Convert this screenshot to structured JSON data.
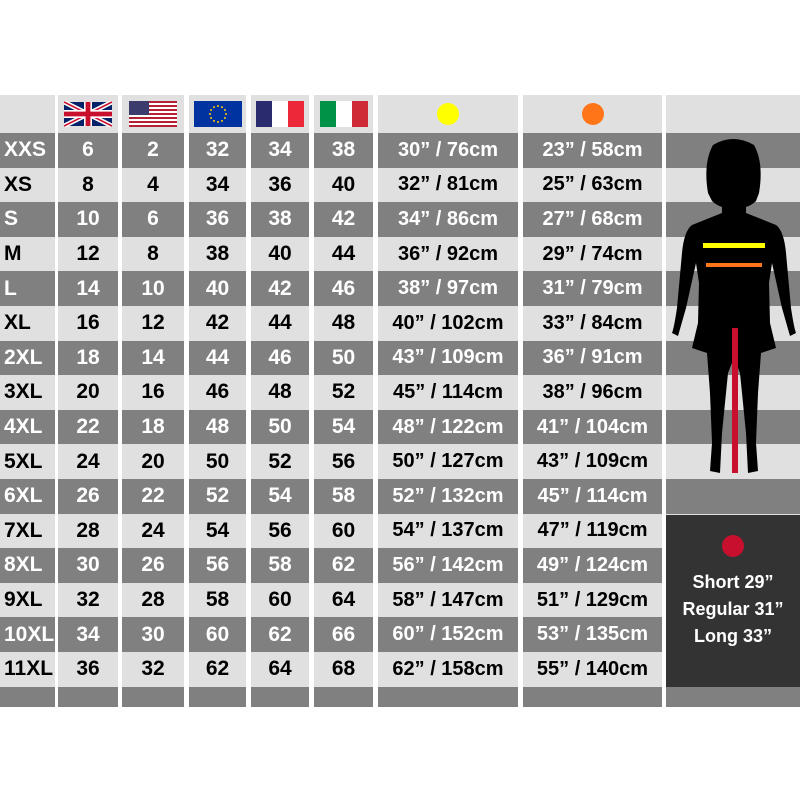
{
  "colors": {
    "bust": "#ffff00",
    "waist": "#ff7518",
    "inseam": "#c8102e",
    "dark_row": "#808080",
    "light_row": "#e0e0e0"
  },
  "header": {
    "flags": [
      "uk-flag",
      "us-flag",
      "eu-flag",
      "france-flag",
      "italy-flag"
    ],
    "bust_icon": "yellow-dot",
    "waist_icon": "orange-dot"
  },
  "rows": [
    [
      "XXS",
      "6",
      "2",
      "32",
      "34",
      "38",
      "30” / 76cm",
      "23” / 58cm"
    ],
    [
      "XS",
      "8",
      "4",
      "34",
      "36",
      "40",
      "32” / 81cm",
      "25” / 63cm"
    ],
    [
      "S",
      "10",
      "6",
      "36",
      "38",
      "42",
      "34” / 86cm",
      "27” / 68cm"
    ],
    [
      "M",
      "12",
      "8",
      "38",
      "40",
      "44",
      "36” / 92cm",
      "29” / 74cm"
    ],
    [
      "L",
      "14",
      "10",
      "40",
      "42",
      "46",
      "38” / 97cm",
      "31” / 79cm"
    ],
    [
      "XL",
      "16",
      "12",
      "42",
      "44",
      "48",
      "40” / 102cm",
      "33” / 84cm"
    ],
    [
      "2XL",
      "18",
      "14",
      "44",
      "46",
      "50",
      "43” / 109cm",
      "36” / 91cm"
    ],
    [
      "3XL",
      "20",
      "16",
      "46",
      "48",
      "52",
      "45” / 114cm",
      "38” / 96cm"
    ],
    [
      "4XL",
      "22",
      "18",
      "48",
      "50",
      "54",
      "48” / 122cm",
      "41” / 104cm"
    ],
    [
      "5XL",
      "24",
      "20",
      "50",
      "52",
      "56",
      "50” / 127cm",
      "43” / 109cm"
    ],
    [
      "6XL",
      "26",
      "22",
      "52",
      "54",
      "58",
      "52” / 132cm",
      "45” / 114cm"
    ],
    [
      "7XL",
      "28",
      "24",
      "54",
      "56",
      "60",
      "54” / 137cm",
      "47” / 119cm"
    ],
    [
      "8XL",
      "30",
      "26",
      "56",
      "58",
      "62",
      "56” / 142cm",
      "49” / 124cm"
    ],
    [
      "9XL",
      "32",
      "28",
      "58",
      "60",
      "64",
      "58” / 147cm",
      "51” / 129cm"
    ],
    [
      "10XL",
      "34",
      "30",
      "60",
      "62",
      "66",
      "60” / 152cm",
      "53” / 135cm"
    ],
    [
      "11XL",
      "36",
      "32",
      "62",
      "64",
      "68",
      "62” / 158cm",
      "55” / 140cm"
    ]
  ],
  "inseam": {
    "short": "Short 29”",
    "regular": "Regular 31”",
    "long": "Long 33”"
  }
}
